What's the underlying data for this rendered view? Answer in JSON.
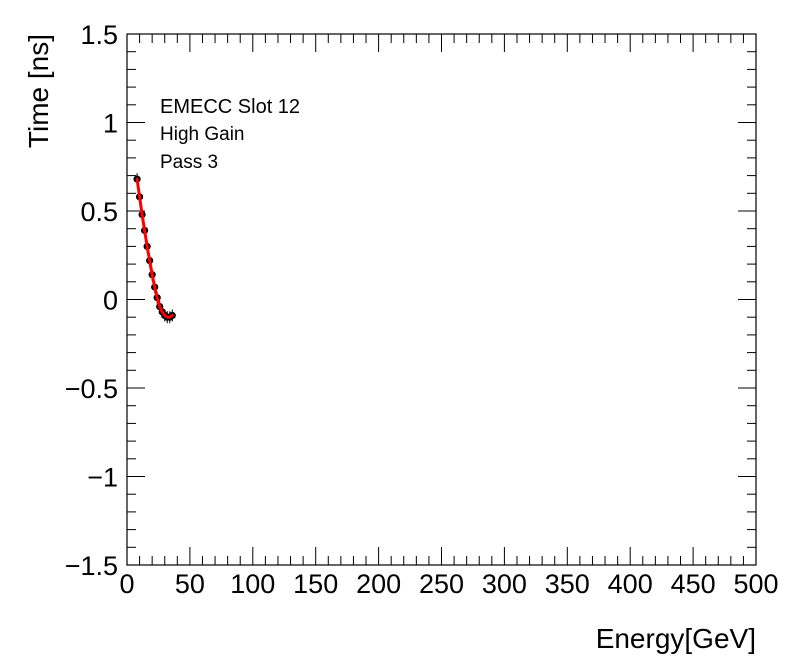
{
  "chart_data": {
    "type": "scatter",
    "xlabel": "Energy[GeV]",
    "ylabel": "Time [ns]",
    "xlim": [
      0,
      500
    ],
    "ylim": [
      -1.5,
      1.5
    ],
    "x_ticks": [
      0,
      50,
      100,
      150,
      200,
      250,
      300,
      350,
      400,
      450,
      500
    ],
    "y_ticks": [
      -1.5,
      -1,
      -0.5,
      0,
      0.5,
      1,
      1.5
    ],
    "x_tick_labels": [
      "0",
      "50",
      "100",
      "150",
      "200",
      "250",
      "300",
      "350",
      "400",
      "450",
      "500"
    ],
    "y_tick_labels": [
      "−1.5",
      "−1",
      "−0.5",
      "0",
      "0.5",
      "1",
      "1.5"
    ],
    "grid": false,
    "annotations": [
      "EMECC Slot 12",
      "High Gain",
      "Pass 3"
    ],
    "series": [
      {
        "x": [
          8,
          10,
          12,
          14,
          16,
          18,
          20,
          22,
          24,
          26,
          28,
          30,
          32,
          34,
          36
        ],
        "y": [
          0.68,
          0.58,
          0.48,
          0.39,
          0.3,
          0.22,
          0.14,
          0.07,
          0.01,
          -0.04,
          -0.07,
          -0.09,
          -0.1,
          -0.1,
          -0.09
        ],
        "color": "#000000",
        "style": "markers"
      },
      {
        "x": [
          8,
          10,
          12,
          14,
          16,
          18,
          20,
          22,
          24,
          26,
          28,
          30,
          32,
          34,
          36
        ],
        "y": [
          0.68,
          0.58,
          0.48,
          0.39,
          0.3,
          0.22,
          0.14,
          0.07,
          0.01,
          -0.04,
          -0.07,
          -0.09,
          -0.1,
          -0.1,
          -0.09
        ],
        "color": "#ff0000",
        "style": "line"
      }
    ]
  }
}
